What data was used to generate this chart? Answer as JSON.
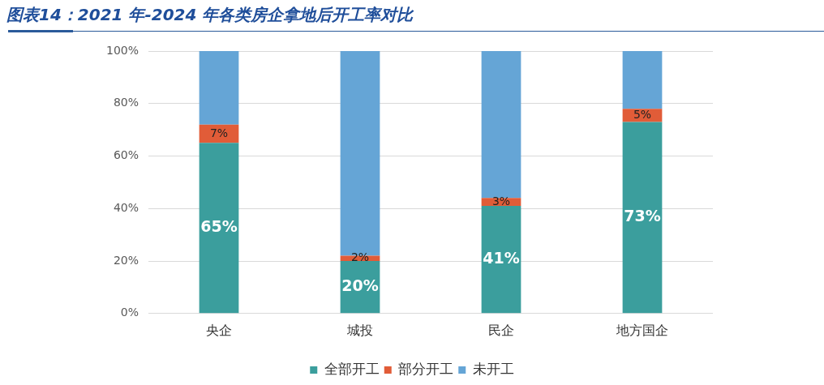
{
  "chart_data": {
    "type": "bar",
    "title": "图表14：2021 年-2024 年各类房企拿地后开工率对比",
    "categories": [
      "央企",
      "城投",
      "民企",
      "地方国企"
    ],
    "series": [
      {
        "name": "全部开工",
        "color": "#3b9e9d",
        "values": [
          65,
          20,
          41,
          73
        ],
        "value_labels": [
          "65%",
          "20%",
          "41%",
          "73%"
        ]
      },
      {
        "name": "部分开工",
        "color": "#e15c38",
        "values": [
          7,
          2,
          3,
          5
        ],
        "value_labels": [
          "7%",
          "2%",
          "3%",
          "5%"
        ]
      },
      {
        "name": "未开工",
        "color": "#65a5d6",
        "values": [
          28,
          78,
          56,
          22
        ]
      }
    ],
    "stacked": true,
    "ylim": [
      0,
      100
    ],
    "yticks": [
      {
        "value": 0,
        "label": "0%"
      },
      {
        "value": 20,
        "label": "20%"
      },
      {
        "value": 40,
        "label": "40%"
      },
      {
        "value": 60,
        "label": "60%"
      },
      {
        "value": 80,
        "label": "80%"
      },
      {
        "value": 100,
        "label": "100%"
      }
    ],
    "grid": "y",
    "legend": "bottom"
  }
}
